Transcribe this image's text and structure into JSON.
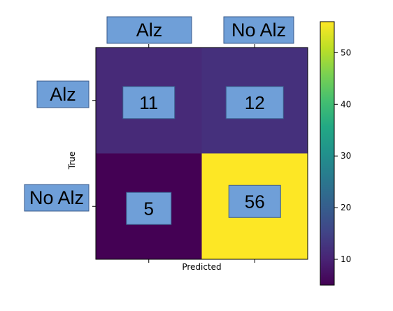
{
  "chart_data": {
    "type": "heatmap",
    "title": "",
    "xlabel": "Predicted",
    "ylabel": "True",
    "x_categories": [
      "Alz",
      "No Alz"
    ],
    "y_categories": [
      "Alz",
      "No Alz"
    ],
    "values": [
      [
        11,
        12
      ],
      [
        5,
        56
      ]
    ],
    "colormap": "viridis",
    "colorbar": {
      "range": [
        5,
        56
      ],
      "ticks": [
        10,
        20,
        30,
        40,
        50
      ]
    },
    "label_box_color": "#6f9fd8"
  }
}
